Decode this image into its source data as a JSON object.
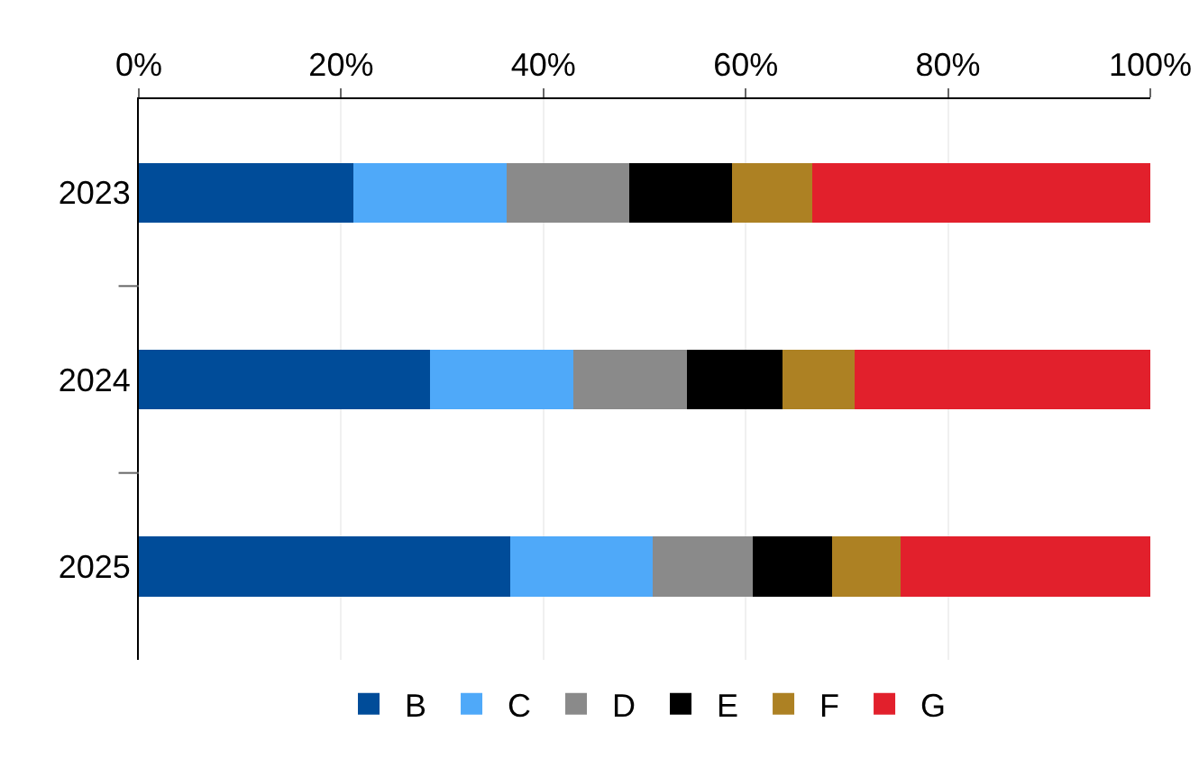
{
  "chart_data": {
    "type": "bar",
    "orientation": "horizontal",
    "stacked": true,
    "categories": [
      "2023",
      "2024",
      "2025"
    ],
    "series": [
      {
        "name": "B",
        "color": "#004c99",
        "values": [
          21.2,
          28.8,
          36.7
        ]
      },
      {
        "name": "C",
        "color": "#4fa9f9",
        "values": [
          15.2,
          14.2,
          14.1
        ]
      },
      {
        "name": "D",
        "color": "#8a8a8a",
        "values": [
          12.1,
          11.2,
          9.9
        ]
      },
      {
        "name": "E",
        "color": "#000000",
        "values": [
          10.1,
          9.4,
          7.8
        ]
      },
      {
        "name": "F",
        "color": "#ad8123",
        "values": [
          8.0,
          7.2,
          6.8
        ]
      },
      {
        "name": "G",
        "color": "#e2202c",
        "values": [
          33.4,
          29.2,
          24.7
        ]
      }
    ],
    "xlim": [
      0,
      100
    ],
    "xticks": [
      {
        "value": 0,
        "label": "0%"
      },
      {
        "value": 20,
        "label": "20%"
      },
      {
        "value": 40,
        "label": "40%"
      },
      {
        "value": 60,
        "label": "60%"
      },
      {
        "value": 80,
        "label": "80%"
      },
      {
        "value": 100,
        "label": "100%"
      }
    ],
    "grid": "x",
    "legend": "bottom"
  }
}
